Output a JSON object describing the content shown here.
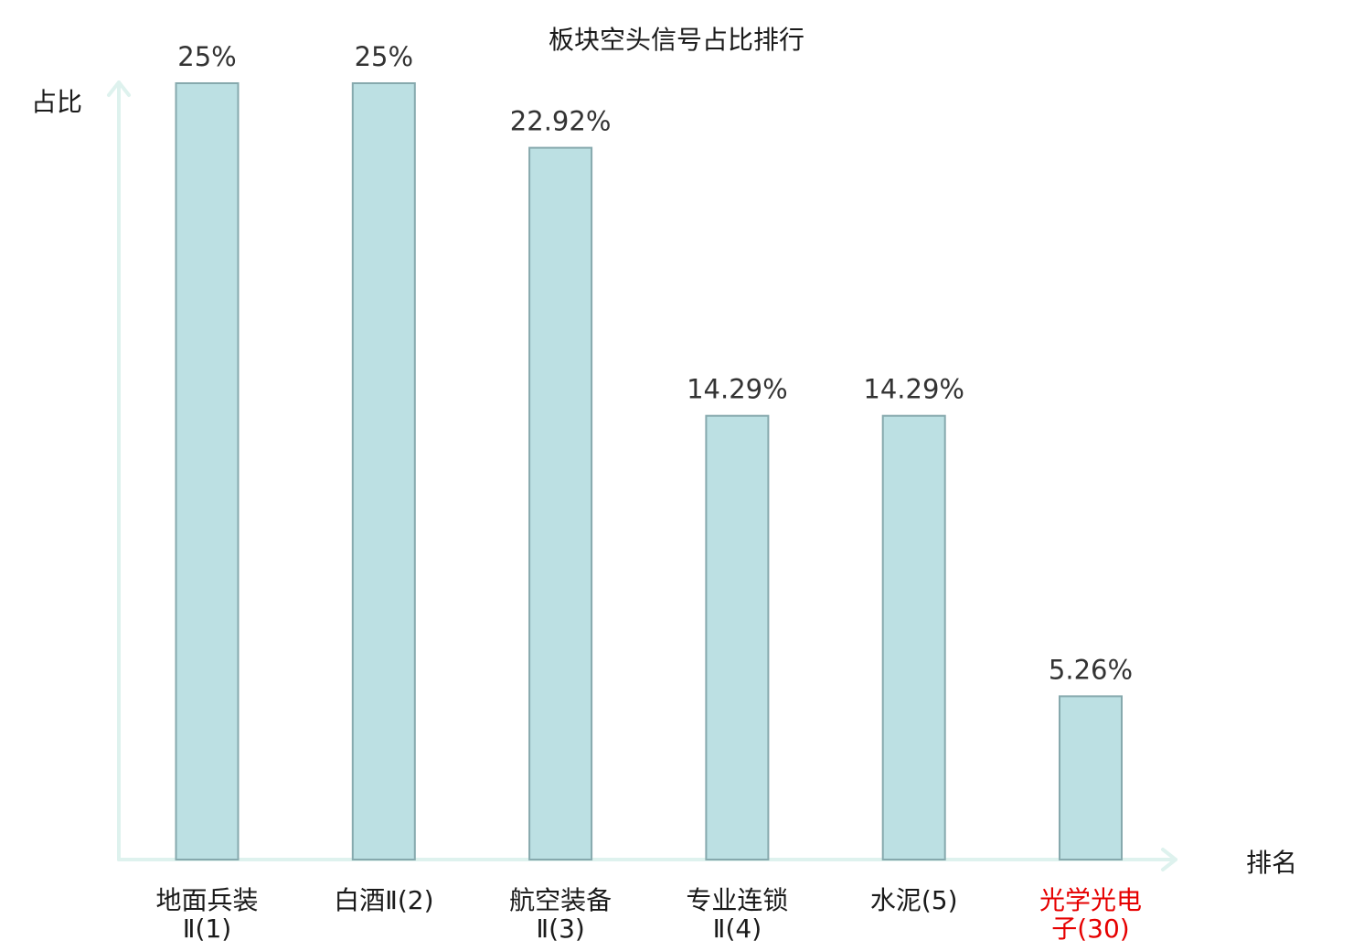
{
  "chart_data": {
    "type": "bar",
    "title": "板块空头信号占比排行",
    "ylabel": "占比",
    "xlabel": "排名",
    "categories": [
      [
        "地面兵装",
        "Ⅱ(1)"
      ],
      [
        "白酒Ⅱ(2)"
      ],
      [
        "航空装备",
        "Ⅱ(3)"
      ],
      [
        "专业连锁",
        "Ⅱ(4)"
      ],
      [
        "水泥(5)"
      ],
      [
        "光学光电",
        "子(30)"
      ]
    ],
    "values": [
      25,
      25,
      22.92,
      14.29,
      14.29,
      5.26
    ],
    "value_labels": [
      "25%",
      "25%",
      "22.92%",
      "14.29%",
      "14.29%",
      "5.26%"
    ],
    "highlight_index": 5,
    "ylim": [
      0,
      25
    ],
    "grid": false,
    "colors": {
      "bar_fill": "#bce0e3",
      "bar_stroke": "#86a9ad",
      "axis": "#def2ee",
      "highlight": "#e60000"
    }
  }
}
